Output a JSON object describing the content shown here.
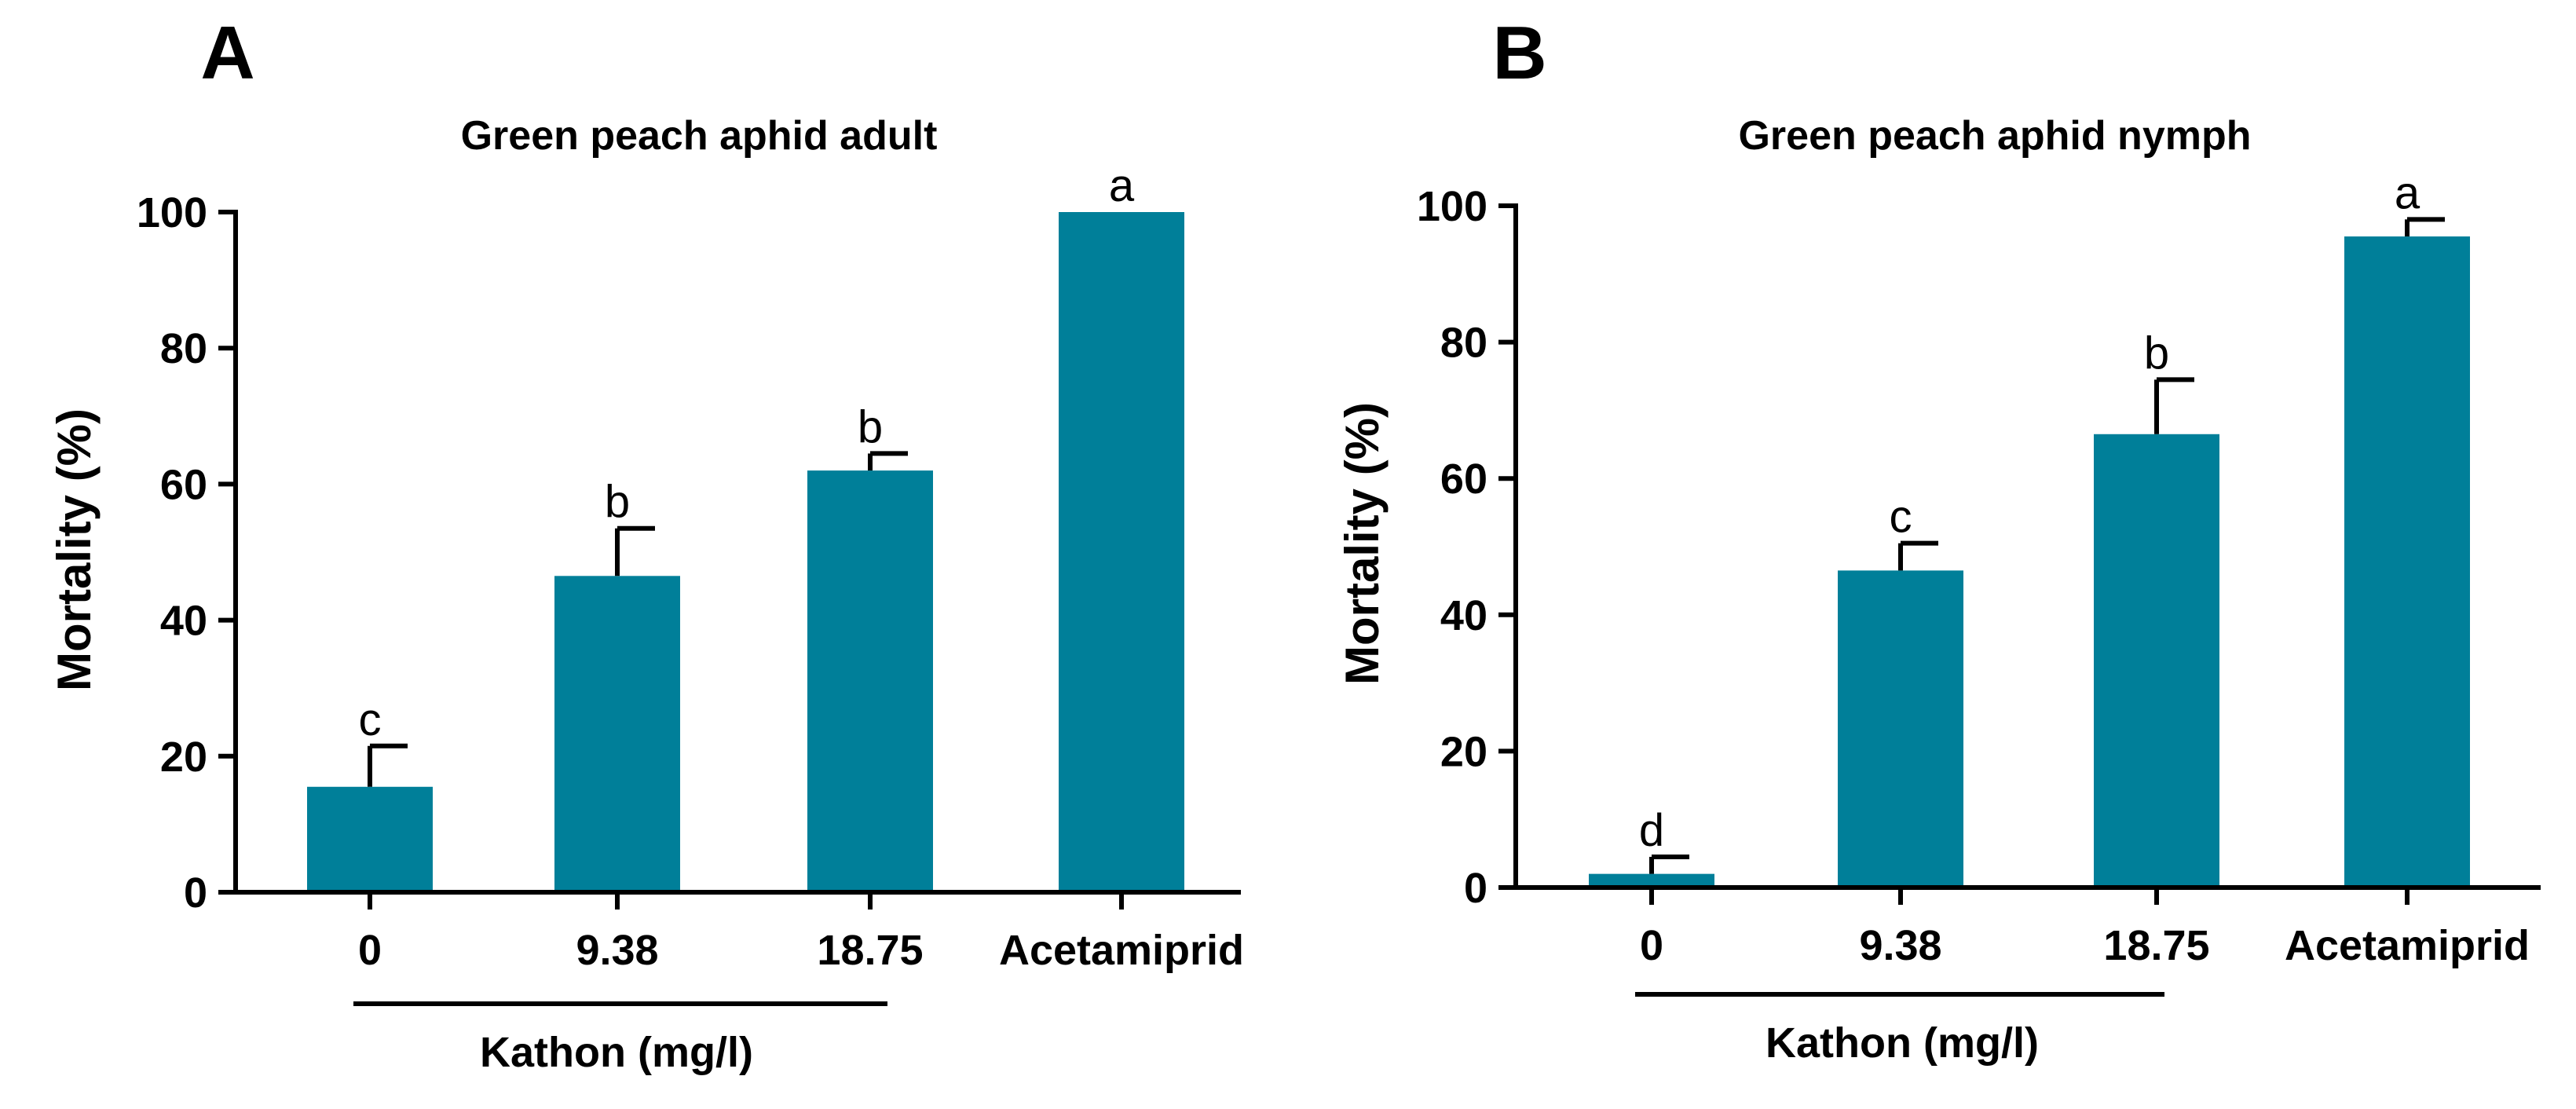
{
  "bar_color": "#007f99",
  "chart_data": [
    {
      "panel": "A",
      "type": "bar",
      "title": "Green peach aphid adult",
      "ylabel": "Mortality (%)",
      "xlabel": "Kathon (mg/l)",
      "categories": [
        "0",
        "9.38",
        "18.75",
        "Acetamiprid"
      ],
      "values": [
        15.5,
        46.5,
        62,
        100
      ],
      "errors": [
        6,
        7,
        2.5,
        0
      ],
      "significance": [
        "c",
        "b",
        "b",
        "a"
      ],
      "ylim": [
        0,
        100
      ],
      "yticks": [
        "0",
        "20",
        "40",
        "60",
        "80",
        "100"
      ],
      "group_categories": 3
    },
    {
      "panel": "B",
      "type": "bar",
      "title": "Green peach aphid nymph",
      "ylabel": "Mortality (%)",
      "xlabel": "Kathon (mg/l)",
      "categories": [
        "0",
        "9.38",
        "18.75",
        "Acetamiprid"
      ],
      "values": [
        2,
        46.5,
        66.5,
        95.5
      ],
      "errors": [
        2.5,
        4,
        8,
        2.5
      ],
      "significance": [
        "d",
        "c",
        "b",
        "a"
      ],
      "ylim": [
        0,
        100
      ],
      "yticks": [
        "0",
        "20",
        "40",
        "60",
        "80",
        "100"
      ],
      "group_categories": 3
    }
  ]
}
